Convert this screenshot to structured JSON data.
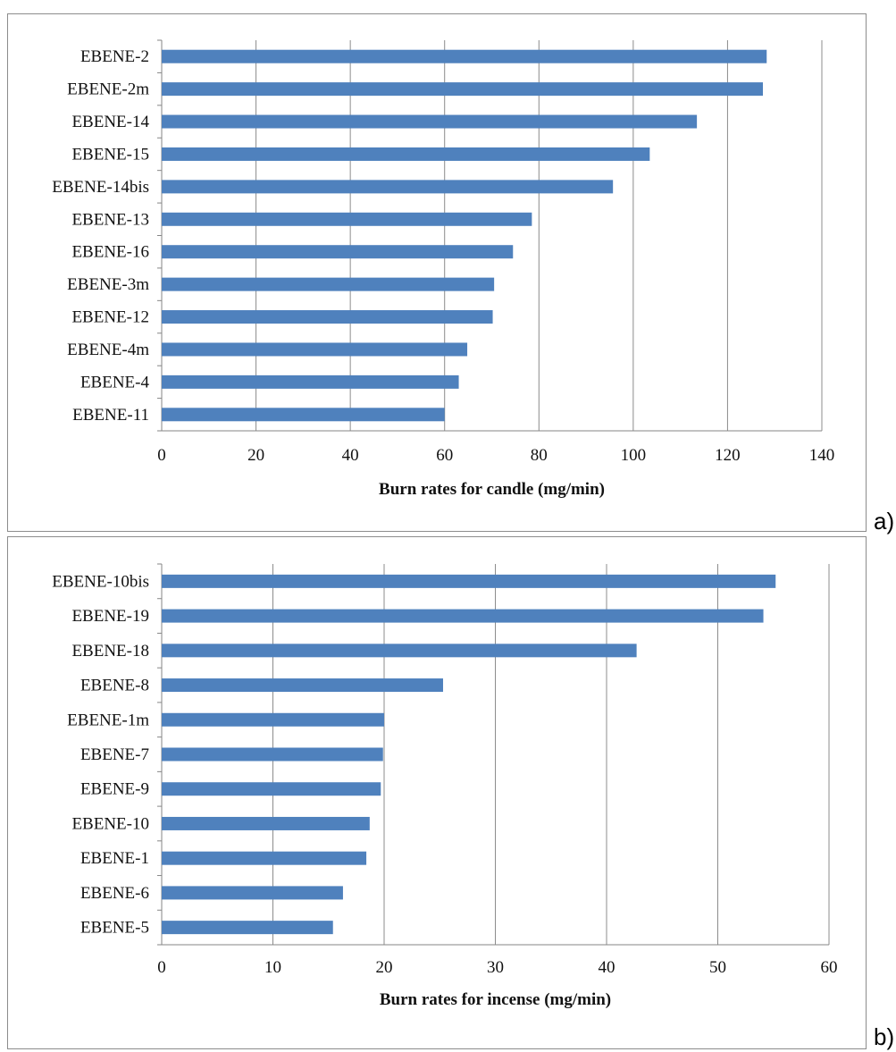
{
  "chart_data": [
    {
      "id": "a",
      "type": "bar",
      "orientation": "horizontal",
      "panel_label": "a)",
      "title": "",
      "xlabel": "Burn rates for candle (mg/min)",
      "ylabel": "",
      "xlim": [
        0,
        140
      ],
      "xticks": [
        0,
        20,
        40,
        60,
        80,
        100,
        120,
        140
      ],
      "grid": "vertical",
      "legend": "none",
      "bar_color": "#4f81bd",
      "categories": [
        "EBENE-2",
        "EBENE-2m",
        "EBENE-14",
        "EBENE-15",
        "EBENE-14bis",
        "EBENE-13",
        "EBENE-16",
        "EBENE-3m",
        "EBENE-12",
        "EBENE-4m",
        "EBENE-4",
        "EBENE-11"
      ],
      "values": [
        128.3,
        127.5,
        113.5,
        103.5,
        95.7,
        78.5,
        74.5,
        70.5,
        70.2,
        64.8,
        63,
        60
      ]
    },
    {
      "id": "b",
      "type": "bar",
      "orientation": "horizontal",
      "panel_label": "b)",
      "title": "",
      "xlabel": "Burn rates for incense (mg/min)",
      "ylabel": "",
      "xlim": [
        0,
        60
      ],
      "xticks": [
        0,
        10,
        20,
        30,
        40,
        50,
        60
      ],
      "grid": "vertical",
      "legend": "none",
      "bar_color": "#4f81bd",
      "categories": [
        "EBENE-10bis",
        "EBENE-19",
        "EBENE-18",
        "EBENE-8",
        "EBENE-1m",
        "EBENE-7",
        "EBENE-9",
        "EBENE-10",
        "EBENE-1",
        "EBENE-6",
        "EBENE-5"
      ],
      "values": [
        55.2,
        54.1,
        42.7,
        25.3,
        20,
        19.9,
        19.7,
        18.7,
        18.4,
        16.3,
        15.4
      ]
    }
  ]
}
